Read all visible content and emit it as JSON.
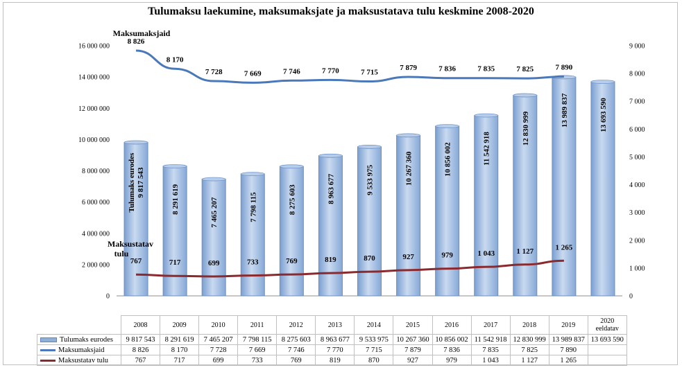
{
  "chart_data": {
    "type": "bar",
    "title": "Tulumaksu laekumine, maksumaksjate ja maksustatava tulu keskmine 2008-2020",
    "categories": [
      "2008",
      "2009",
      "2010",
      "2011",
      "2012",
      "2013",
      "2014",
      "2015",
      "2016",
      "2017",
      "2018",
      "2019",
      "2020 eeldatav"
    ],
    "category_lines": [
      [
        "2008"
      ],
      [
        "2009"
      ],
      [
        "2010"
      ],
      [
        "2011"
      ],
      [
        "2012"
      ],
      [
        "2013"
      ],
      [
        "2014"
      ],
      [
        "2015"
      ],
      [
        "2016"
      ],
      [
        "2017"
      ],
      [
        "2018"
      ],
      [
        "2019"
      ],
      [
        "2020",
        "eeldatav"
      ]
    ],
    "series": [
      {
        "name": "Tulumaks eurodes",
        "type": "bar",
        "axis": "left",
        "color": "#8eafd8",
        "values": [
          9817543,
          8291619,
          7465207,
          7798115,
          8275603,
          8963677,
          9533975,
          10267360,
          10856002,
          11542918,
          12830999,
          13989837,
          13693590
        ],
        "labels": [
          "9 817 543",
          "8 291 619",
          "7 465 207",
          "7 798 115",
          "8 275 603",
          "8 963 677",
          "9 533 975",
          "10 267 360",
          "10 856 002",
          "11 542 918",
          "12 830 999",
          "13 989 837",
          "13 693 590"
        ]
      },
      {
        "name": "Maksumaksjaid",
        "type": "line",
        "axis": "right",
        "color": "#4a78b8",
        "values": [
          8826,
          8170,
          7728,
          7669,
          7746,
          7770,
          7715,
          7879,
          7836,
          7835,
          7825,
          7890,
          null
        ],
        "labels": [
          "8 826",
          "8 170",
          "7 728",
          "7 669",
          "7 746",
          "7 770",
          "7 715",
          "7 879",
          "7 836",
          "7 835",
          "7 825",
          "7 890",
          ""
        ]
      },
      {
        "name": "Maksustatav tulu",
        "type": "line",
        "axis": "right",
        "color": "#8b2a2e",
        "values": [
          767,
          717,
          699,
          733,
          769,
          819,
          870,
          927,
          979,
          1043,
          1127,
          1265,
          null
        ],
        "labels": [
          "767",
          "717",
          "699",
          "733",
          "769",
          "819",
          "870",
          "927",
          "979",
          "1 043",
          "1 127",
          "1 265",
          ""
        ]
      }
    ],
    "series_annotations": {
      "bar_first": [
        "Tulumaks eurodes",
        "9 817 543"
      ],
      "taxpayers": "Maksumaksjaid",
      "income": [
        "Maksustatav",
        "tulu"
      ]
    },
    "y_left": {
      "ylim": [
        0,
        16000000
      ],
      "ticks": [
        "0",
        "2 000 000",
        "4 000 000",
        "6 000 000",
        "8 000 000",
        "10 000 000",
        "12 000 000",
        "14 000 000",
        "16 000 000"
      ]
    },
    "y_right": {
      "ylim": [
        0,
        9000
      ],
      "ticks": [
        "0",
        "1 000",
        "2 000",
        "3 000",
        "4 000",
        "5 000",
        "6 000",
        "7 000",
        "8 000",
        "9 000"
      ]
    },
    "grid": false,
    "legend": "data table below chart"
  }
}
